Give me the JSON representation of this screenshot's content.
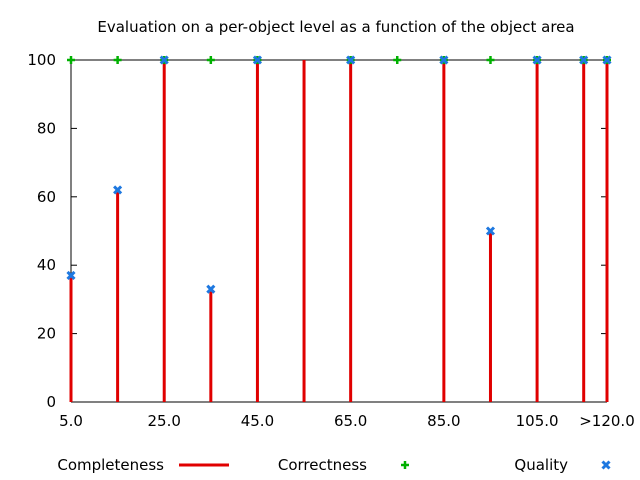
{
  "chart_data": {
    "type": "scatter",
    "title": "Evaluation on a per-object level as a function of the object area",
    "xlabel": "",
    "ylabel": "",
    "xlim": [
      5,
      120
    ],
    "ylim": [
      0,
      100
    ],
    "grid": false,
    "legend_position": "bottom",
    "x_ticks": [
      {
        "value": 5,
        "label": "5.0"
      },
      {
        "value": 25,
        "label": "25.0"
      },
      {
        "value": 45,
        "label": "45.0"
      },
      {
        "value": 65,
        "label": "65.0"
      },
      {
        "value": 85,
        "label": "85.0"
      },
      {
        "value": 105,
        "label": "105.0"
      },
      {
        "value": 120,
        "label": ">120.0"
      }
    ],
    "y_ticks": [
      {
        "value": 0,
        "label": "0"
      },
      {
        "value": 20,
        "label": "20"
      },
      {
        "value": 40,
        "label": "40"
      },
      {
        "value": 60,
        "label": "60"
      },
      {
        "value": 80,
        "label": "80"
      },
      {
        "value": 100,
        "label": "100"
      }
    ],
    "x": [
      5,
      15,
      25,
      35,
      45,
      55,
      65,
      75,
      85,
      95,
      105,
      115,
      120
    ],
    "series": [
      {
        "name": "Completeness",
        "style": "impulses",
        "color": "#e00000",
        "values": [
          37,
          62,
          100,
          33,
          100,
          100,
          100,
          0,
          100,
          50,
          100,
          100,
          100
        ]
      },
      {
        "name": "Correctness",
        "style": "plus",
        "color": "#00b000",
        "values": [
          100,
          100,
          100,
          100,
          100,
          null,
          100,
          100,
          100,
          100,
          100,
          100,
          100
        ]
      },
      {
        "name": "Quality",
        "style": "x",
        "color": "#1e78e0",
        "values": [
          37,
          62,
          100,
          33,
          100,
          null,
          100,
          null,
          100,
          50,
          100,
          100,
          100
        ]
      }
    ]
  }
}
